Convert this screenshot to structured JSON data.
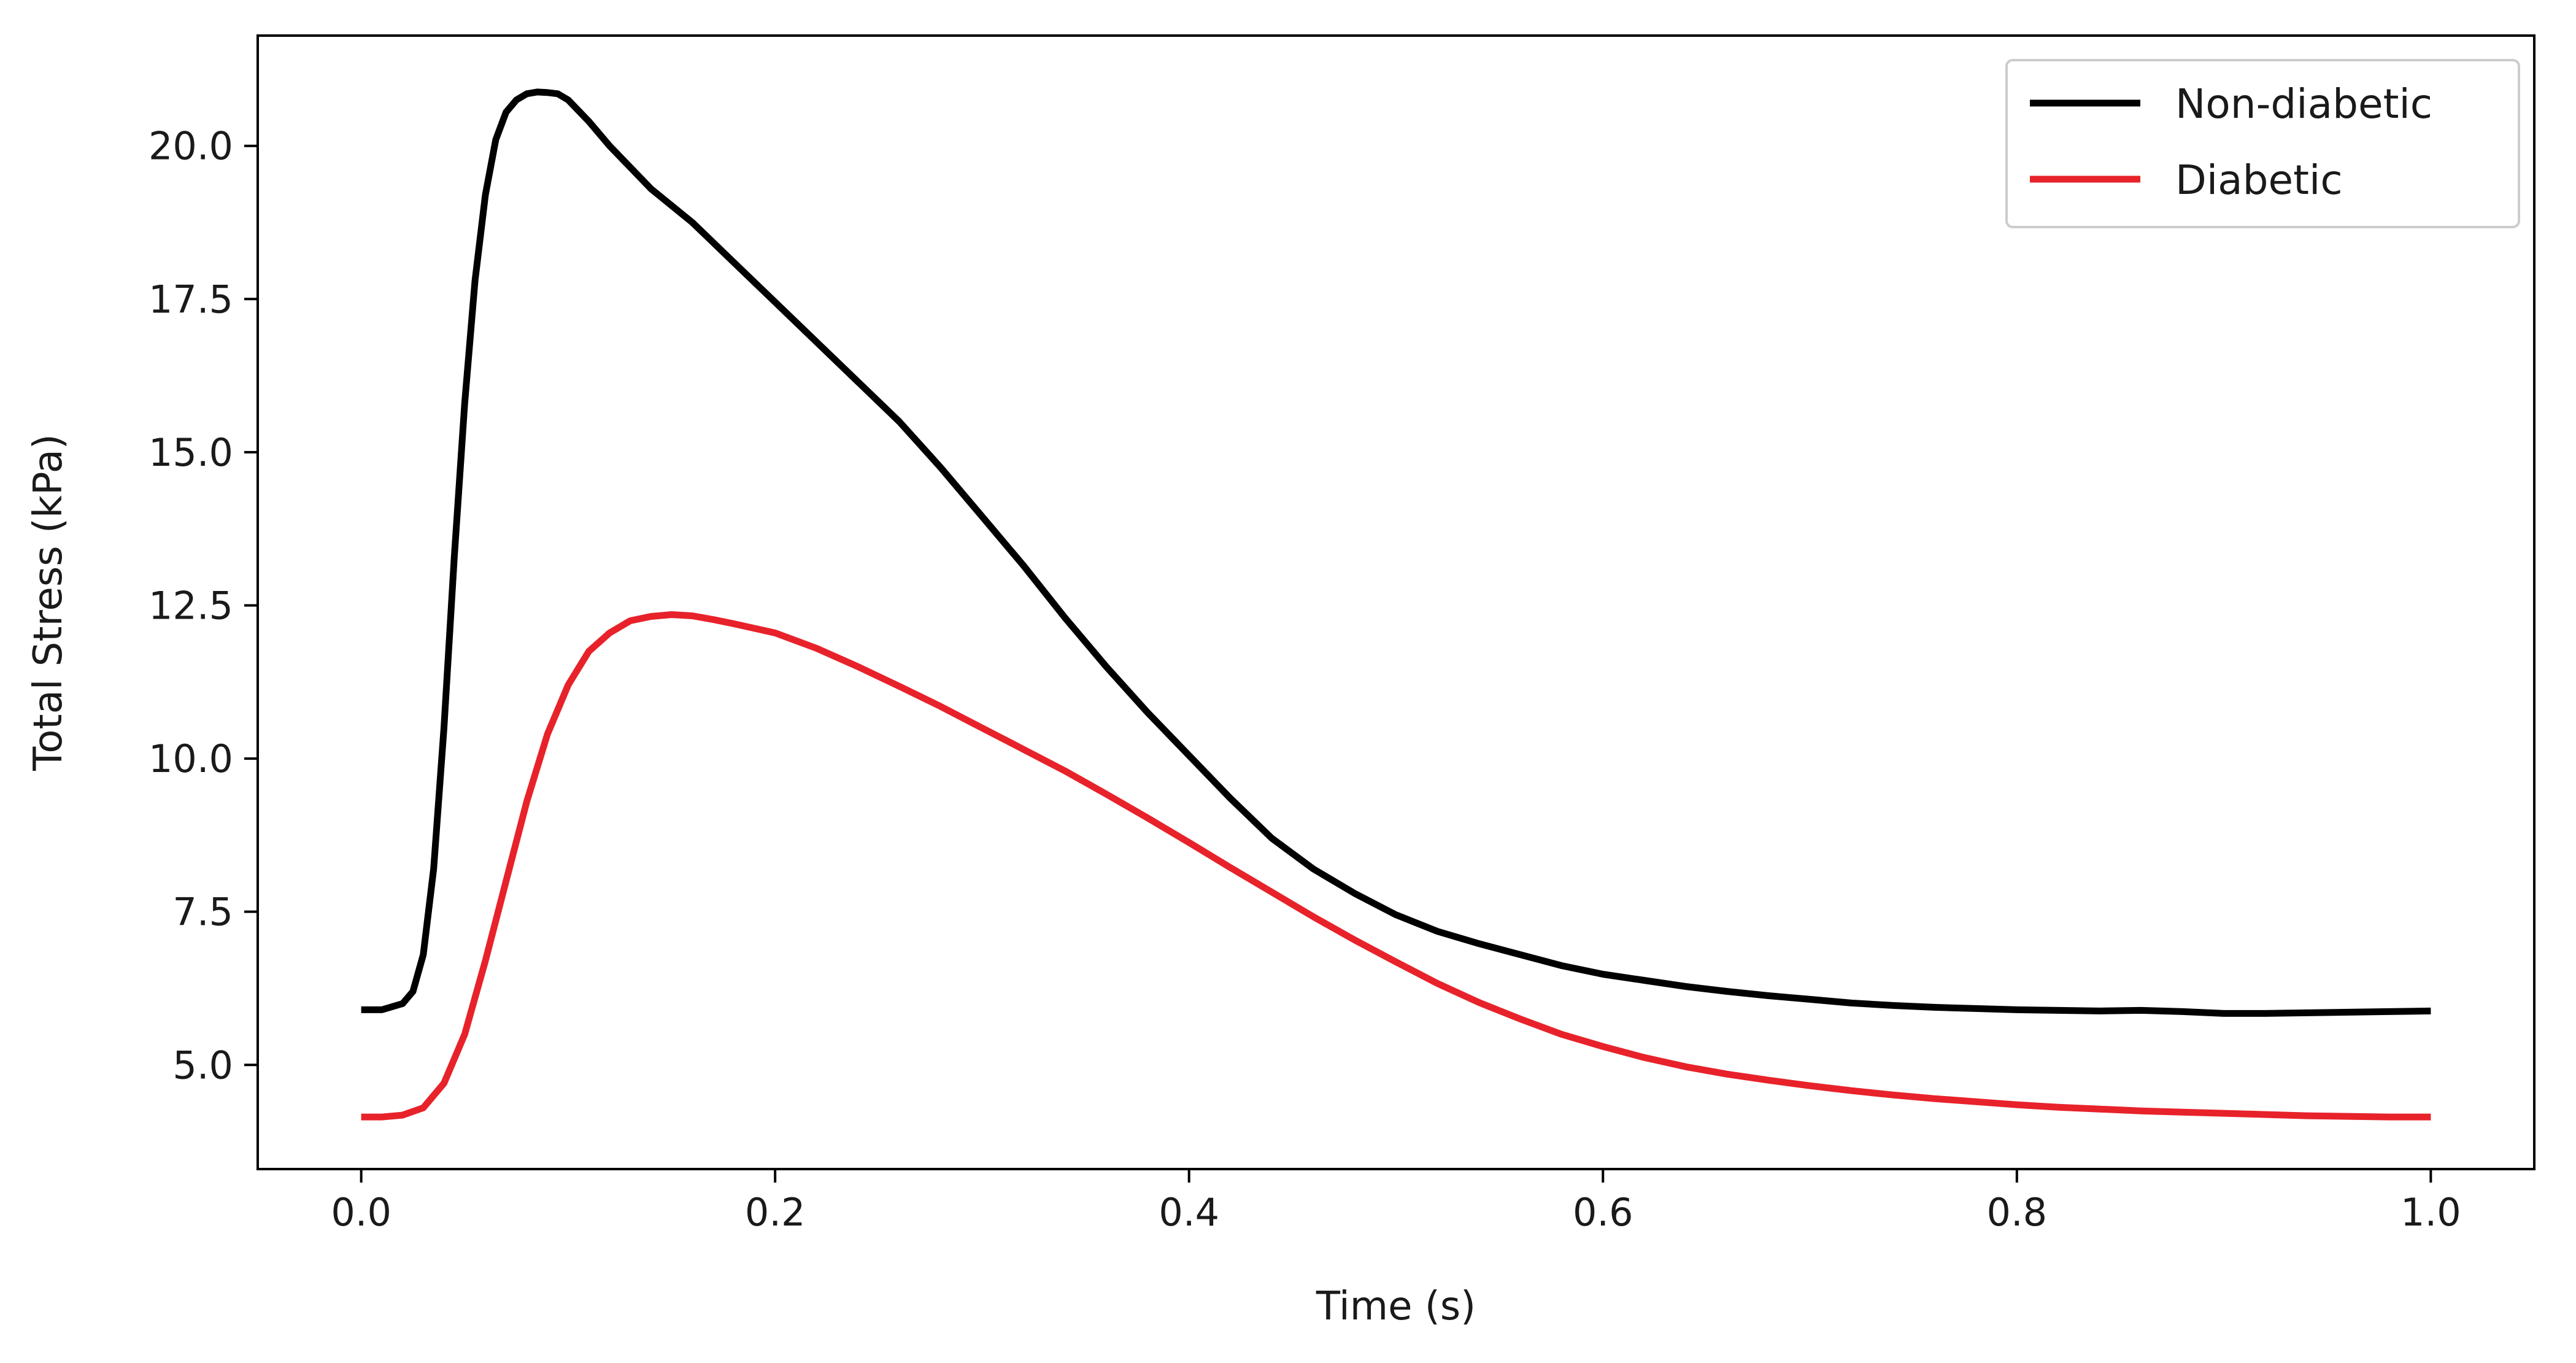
{
  "chart_data": {
    "type": "line",
    "title": "",
    "xlabel": "Time (s)",
    "ylabel": "Total Stress (kPa)",
    "xlim": [
      -0.05,
      1.05
    ],
    "ylim": [
      3.3,
      21.8
    ],
    "x_ticks": [
      0.0,
      0.2,
      0.4,
      0.6,
      0.8,
      1.0
    ],
    "x_tick_labels": [
      "0.0",
      "0.2",
      "0.4",
      "0.6",
      "0.8",
      "1.0"
    ],
    "y_ticks": [
      5.0,
      7.5,
      10.0,
      12.5,
      15.0,
      17.5,
      20.0
    ],
    "y_tick_labels": [
      "5.0",
      "7.5",
      "10.0",
      "12.5",
      "15.0",
      "17.5",
      "20.0"
    ],
    "grid": false,
    "legend_position": "top-right",
    "series": [
      {
        "name": "Non-diabetic",
        "color": "#000000",
        "x": [
          0.0,
          0.01,
          0.02,
          0.025,
          0.03,
          0.035,
          0.04,
          0.045,
          0.05,
          0.055,
          0.06,
          0.065,
          0.07,
          0.075,
          0.08,
          0.085,
          0.09,
          0.095,
          0.1,
          0.11,
          0.12,
          0.14,
          0.16,
          0.18,
          0.2,
          0.22,
          0.24,
          0.26,
          0.28,
          0.3,
          0.32,
          0.34,
          0.36,
          0.38,
          0.4,
          0.42,
          0.44,
          0.46,
          0.48,
          0.5,
          0.52,
          0.54,
          0.56,
          0.58,
          0.6,
          0.62,
          0.64,
          0.66,
          0.68,
          0.7,
          0.72,
          0.74,
          0.76,
          0.78,
          0.8,
          0.82,
          0.84,
          0.86,
          0.88,
          0.9,
          0.92,
          0.94,
          0.96,
          0.98,
          1.0
        ],
        "y": [
          5.9,
          5.9,
          6.0,
          6.2,
          6.8,
          8.2,
          10.5,
          13.3,
          15.8,
          17.8,
          19.2,
          20.1,
          20.55,
          20.75,
          20.85,
          20.88,
          20.87,
          20.85,
          20.75,
          20.4,
          20.0,
          19.3,
          18.75,
          18.1,
          17.45,
          16.8,
          16.15,
          15.5,
          14.75,
          13.95,
          13.15,
          12.3,
          11.5,
          10.75,
          10.05,
          9.35,
          8.7,
          8.2,
          7.8,
          7.45,
          7.18,
          6.98,
          6.8,
          6.62,
          6.48,
          6.38,
          6.28,
          6.2,
          6.13,
          6.07,
          6.01,
          5.97,
          5.94,
          5.92,
          5.9,
          5.89,
          5.88,
          5.89,
          5.87,
          5.84,
          5.84,
          5.85,
          5.86,
          5.87,
          5.88
        ]
      },
      {
        "name": "Diabetic",
        "color": "#e8222a",
        "x": [
          0.0,
          0.01,
          0.02,
          0.03,
          0.04,
          0.05,
          0.06,
          0.07,
          0.08,
          0.09,
          0.1,
          0.11,
          0.12,
          0.13,
          0.14,
          0.15,
          0.16,
          0.17,
          0.18,
          0.2,
          0.22,
          0.24,
          0.26,
          0.28,
          0.3,
          0.32,
          0.34,
          0.36,
          0.38,
          0.4,
          0.42,
          0.44,
          0.46,
          0.48,
          0.5,
          0.52,
          0.54,
          0.56,
          0.58,
          0.6,
          0.62,
          0.64,
          0.66,
          0.68,
          0.7,
          0.72,
          0.74,
          0.76,
          0.78,
          0.8,
          0.82,
          0.84,
          0.86,
          0.88,
          0.9,
          0.92,
          0.94,
          0.96,
          0.98,
          1.0
        ],
        "y": [
          4.15,
          4.15,
          4.18,
          4.3,
          4.7,
          5.5,
          6.7,
          8.0,
          9.3,
          10.4,
          11.2,
          11.75,
          12.05,
          12.25,
          12.32,
          12.35,
          12.33,
          12.27,
          12.2,
          12.05,
          11.8,
          11.5,
          11.18,
          10.85,
          10.5,
          10.15,
          9.8,
          9.42,
          9.03,
          8.63,
          8.22,
          7.82,
          7.42,
          7.04,
          6.68,
          6.33,
          6.02,
          5.75,
          5.5,
          5.3,
          5.12,
          4.97,
          4.85,
          4.75,
          4.66,
          4.58,
          4.51,
          4.45,
          4.4,
          4.35,
          4.31,
          4.28,
          4.25,
          4.23,
          4.21,
          4.19,
          4.17,
          4.16,
          4.15,
          4.15
        ]
      }
    ]
  }
}
